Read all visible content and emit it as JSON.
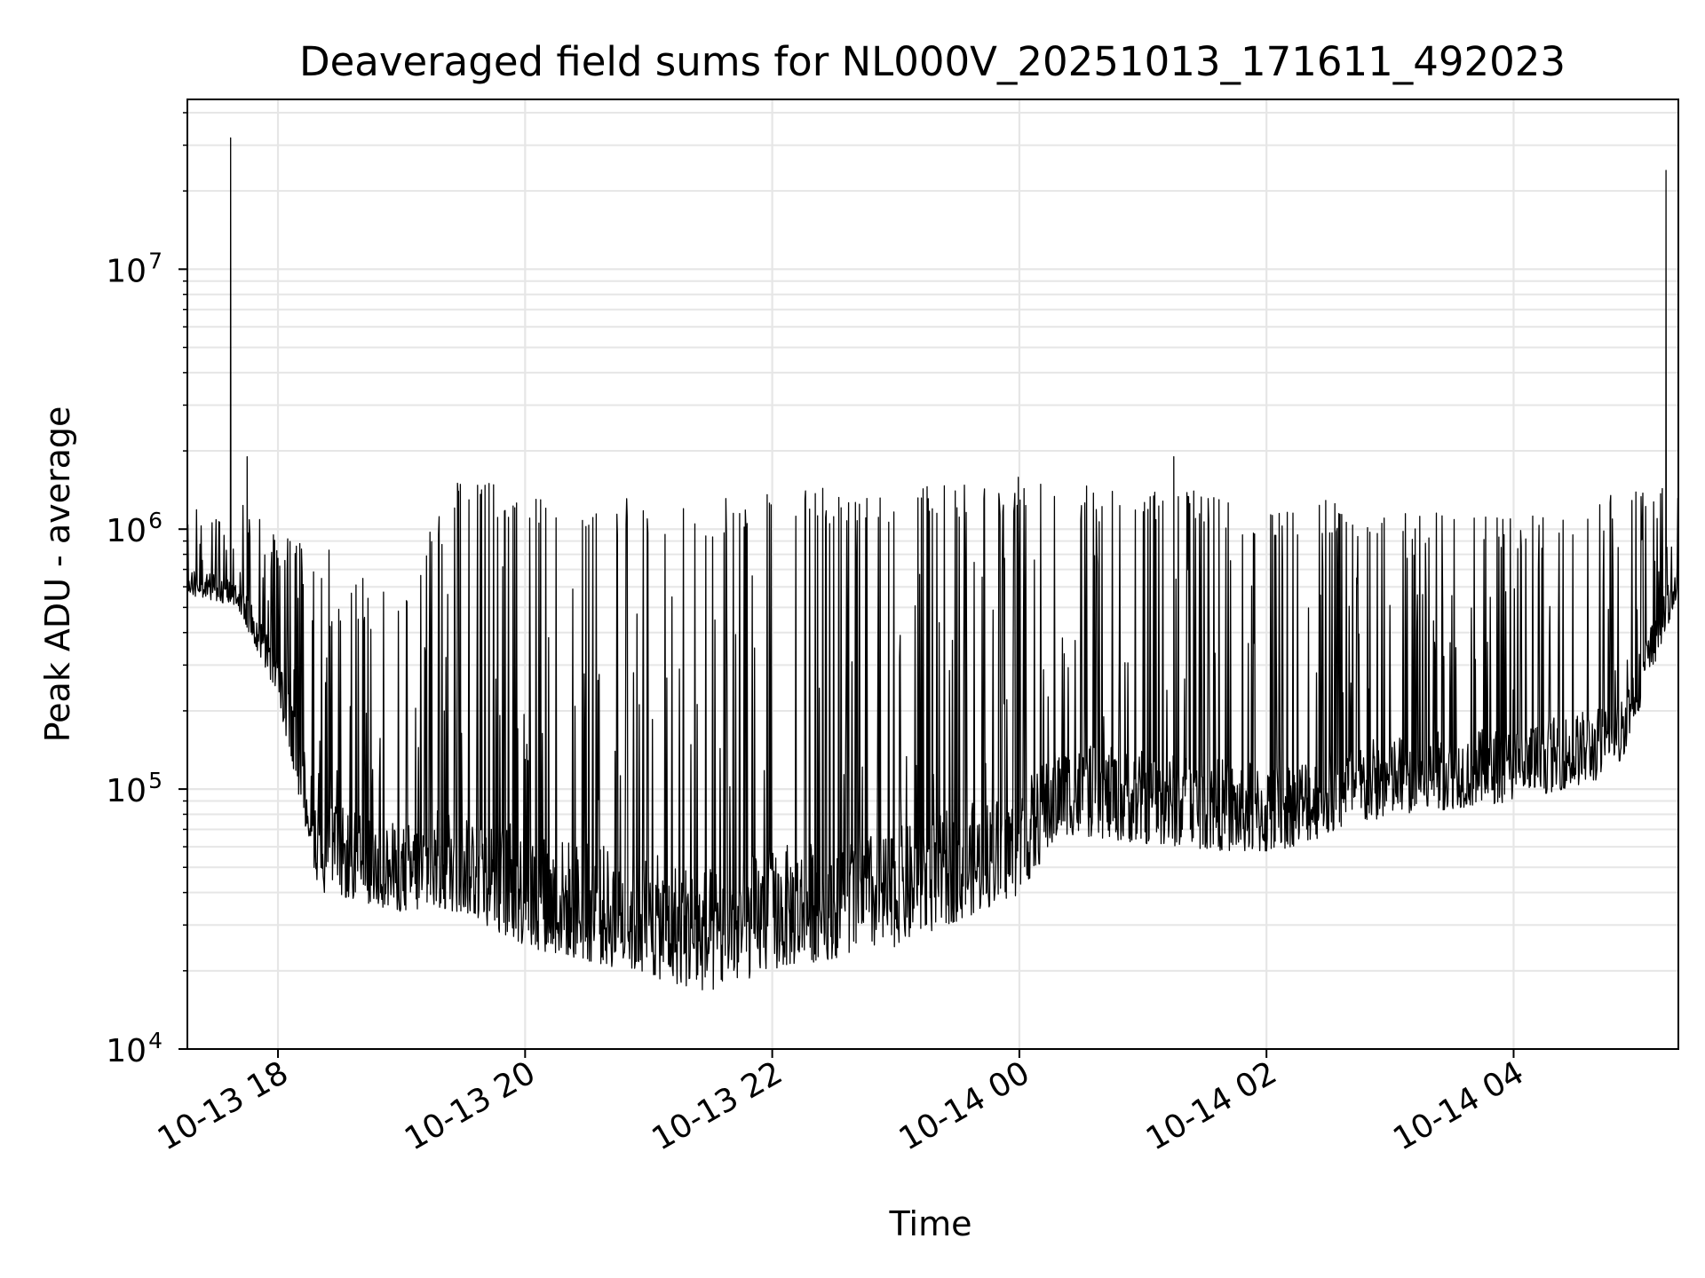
{
  "chart_data": {
    "type": "line",
    "title": "Deaveraged field sums for NL000V_20251013_171611_492023",
    "xlabel": "Time",
    "ylabel": "Peak ADU - average",
    "y_scale": "log",
    "grid": "on (major and minor)",
    "legend": "none",
    "xlim": [
      "2025-10-13 17:16",
      "2025-10-14 05:20"
    ],
    "ylim": [
      10000,
      45000000
    ],
    "x_ticks": [
      "10-13 18",
      "10-13 20",
      "10-13 22",
      "10-14 00",
      "10-14 02",
      "10-14 04"
    ],
    "x_tick_times": [
      "2025-10-13 18:00",
      "2025-10-13 20:00",
      "2025-10-13 22:00",
      "2025-10-14 00:00",
      "2025-10-14 02:00",
      "2025-10-14 04:00"
    ],
    "y_ticks": [
      {
        "base": "10",
        "exp": "4",
        "value": 10000
      },
      {
        "base": "10",
        "exp": "5",
        "value": 100000
      },
      {
        "base": "10",
        "exp": "6",
        "value": 1000000
      },
      {
        "base": "10",
        "exp": "7",
        "value": 10000000
      }
    ],
    "series": [
      {
        "color": "#000000",
        "envelope": [
          {
            "time": "2025-10-13 17:16",
            "low": 500000,
            "high": 1200000
          },
          {
            "time": "2025-10-13 17:40",
            "low": 450000,
            "high": 1300000
          },
          {
            "time": "2025-10-13 18:00",
            "low": 200000,
            "high": 1000000
          },
          {
            "time": "2025-10-13 18:20",
            "low": 36000,
            "high": 900000
          },
          {
            "time": "2025-10-13 19:00",
            "low": 30000,
            "high": 650000
          },
          {
            "time": "2025-10-13 19:30",
            "low": 30000,
            "high": 1700000
          },
          {
            "time": "2025-10-13 20:00",
            "low": 22000,
            "high": 1400000
          },
          {
            "time": "2025-10-13 21:00",
            "low": 17000,
            "high": 1300000
          },
          {
            "time": "2025-10-13 21:30",
            "low": 14500,
            "high": 1300000
          },
          {
            "time": "2025-10-13 22:00",
            "low": 18000,
            "high": 1400000
          },
          {
            "time": "2025-10-13 23:00",
            "low": 22000,
            "high": 1500000
          },
          {
            "time": "2025-10-14 00:00",
            "low": 35000,
            "high": 1600000
          },
          {
            "time": "2025-10-14 00:20",
            "low": 60000,
            "high": 1500000
          },
          {
            "time": "2025-10-14 01:00",
            "low": 55000,
            "high": 1500000
          },
          {
            "time": "2025-10-14 02:00",
            "low": 50000,
            "high": 1300000
          },
          {
            "time": "2025-10-14 03:00",
            "low": 70000,
            "high": 1300000
          },
          {
            "time": "2025-10-14 04:00",
            "low": 80000,
            "high": 1100000
          },
          {
            "time": "2025-10-14 04:50",
            "low": 100000,
            "high": 1400000
          },
          {
            "time": "2025-10-14 05:20",
            "low": 500000,
            "high": 1600000
          }
        ],
        "spikes": [
          {
            "time": "2025-10-13 17:37",
            "value": 32000000
          },
          {
            "time": "2025-10-13 17:45",
            "value": 1900000
          },
          {
            "time": "2025-10-14 01:15",
            "value": 1900000
          },
          {
            "time": "2025-10-14 05:14",
            "value": 24000000
          }
        ]
      }
    ]
  }
}
